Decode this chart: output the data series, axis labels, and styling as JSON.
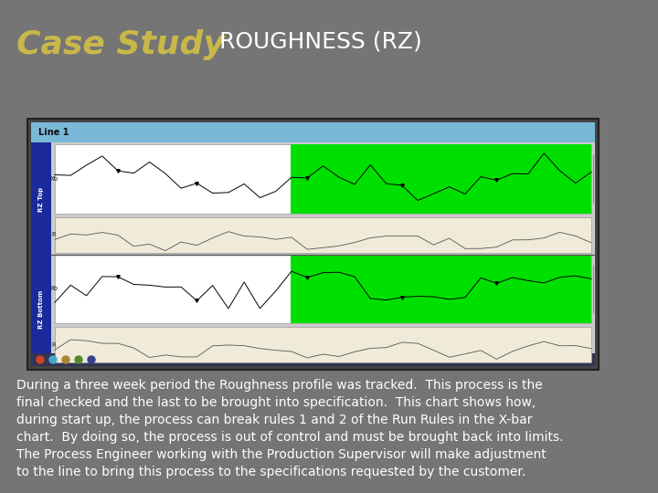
{
  "bg_color": "#757575",
  "title_case_study": "Case Study",
  "title_case_study_color": "#c8b84a",
  "title_roughness": "ROUGHNESS (RZ)",
  "title_roughness_color": "#ffffff",
  "title_fontsize": 26,
  "subtitle_fontsize": 18,
  "body_text": "During a three week period the Roughness profile was tracked.  This process is the\nfinal checked and the last to be brought into specification.  This chart shows how,\nduring start up, the process can break rules 1 and 2 of the Run Rules in the X-bar\nchart.  By doing so, the process is out of control and must be brought back into limits.\nThe Process Engineer working with the Production Supervisor will make adjustment\nto the line to bring this process to the specifications requested by the customer.",
  "body_text_color": "#ffffff",
  "body_fontsize": 10.0,
  "green_color": "#00e000",
  "cream_color": "#f0ead8",
  "blue_sidebar_color": "#1a2a9a",
  "taskbar_color": "#7ab8d8",
  "screen_gray": "#cccccc",
  "label_rz_top": "RZ Top",
  "label_rz_bottom": "RZ Bottom",
  "label_xb": "Xb",
  "label_r": "R",
  "line1_text": "Line 1"
}
